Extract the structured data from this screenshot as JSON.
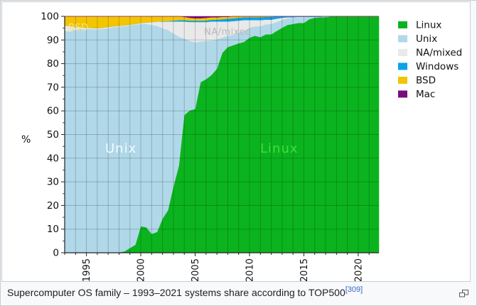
{
  "figure": {
    "caption": {
      "text": "Supercomputer OS family – 1993–2021 systems share according to TOP500",
      "ref": "[309]"
    }
  },
  "chart_data": {
    "type": "area",
    "stacked": true,
    "title": "",
    "xlabel": "",
    "ylabel": "%",
    "xlim": [
      1993,
      2021.9
    ],
    "ylim": [
      0,
      100
    ],
    "grid": true,
    "legend_position": "right",
    "xticks": {
      "major": [
        1995,
        2000,
        2005,
        2010,
        2015,
        2020
      ],
      "minor_step": 1
    },
    "yticks": {
      "major": [
        0,
        10,
        20,
        30,
        40,
        50,
        60,
        70,
        80,
        90,
        100
      ],
      "minor_step": 5
    },
    "x": [
      1993,
      1993.5,
      1994,
      1994.5,
      1995,
      1995.5,
      1996,
      1996.5,
      1997,
      1997.5,
      1998,
      1998.5,
      1999,
      1999.5,
      2000,
      2000.5,
      2001,
      2001.5,
      2002,
      2002.5,
      2003,
      2003.5,
      2004,
      2004.5,
      2005,
      2005.5,
      2006,
      2006.5,
      2007,
      2007.5,
      2008,
      2008.5,
      2009,
      2009.5,
      2010,
      2010.5,
      2011,
      2011.5,
      2012,
      2012.5,
      2013,
      2013.5,
      2014,
      2014.5,
      2015,
      2015.5,
      2016,
      2016.5,
      2017,
      2017.5,
      2018,
      2018.5,
      2019,
      2019.5,
      2020,
      2020.5,
      2021,
      2021.5,
      2021.9
    ],
    "series": [
      {
        "name": "Linux",
        "color": "#0bb41e",
        "values": [
          0,
          0,
          0,
          0,
          0,
          0,
          0,
          0,
          0,
          0,
          0.2,
          0.6,
          2,
          3.4,
          11.2,
          10.8,
          8,
          8.8,
          14.4,
          18,
          28,
          36.8,
          58.2,
          60.2,
          60.8,
          72.2,
          73.4,
          75.2,
          77.8,
          84.6,
          87,
          87.8,
          88.6,
          89.2,
          91,
          91.8,
          91.2,
          92.4,
          92.4,
          93.8,
          95.2,
          96.4,
          96.8,
          97.2,
          97.2,
          98.8,
          99.4,
          99.6,
          99.6,
          100,
          100,
          100,
          100,
          100,
          100,
          100,
          100,
          100,
          100
        ]
      },
      {
        "name": "Unix",
        "color": "#b0d8e8",
        "values": [
          94,
          93.5,
          94.5,
          94.7,
          94.7,
          94.6,
          94.5,
          94.7,
          95,
          95.4,
          95.4,
          95.2,
          94.2,
          93.1,
          85.6,
          86,
          88.4,
          87.2,
          80.6,
          76.2,
          64.8,
          54.6,
          32.4,
          29.4,
          28.2,
          17.2,
          16.2,
          14.6,
          12.4,
          6.4,
          4.8,
          4.4,
          4.4,
          4.6,
          4.2,
          4,
          4.6,
          4.2,
          4.4,
          3.8,
          3.4,
          2.8,
          2.6,
          2.4,
          2.4,
          1,
          0.4,
          0.2,
          0.4,
          0,
          0,
          0,
          0,
          0,
          0,
          0,
          0,
          0,
          0
        ]
      },
      {
        "name": "NA/mixed",
        "color": "#e9e9e9",
        "values": [
          2,
          2.5,
          1,
          0.7,
          0.5,
          0.5,
          0.5,
          0.5,
          0.5,
          0.4,
          0.4,
          0.4,
          0.3,
          0.3,
          0.4,
          0.6,
          1.2,
          1.8,
          2.8,
          3.6,
          5,
          6.4,
          7.2,
          8,
          8.6,
          8.2,
          8,
          8,
          7.6,
          6.8,
          6,
          5.8,
          5.2,
          4.6,
          3.2,
          2.6,
          2.6,
          2,
          1.8,
          1.4,
          0.8,
          0.4,
          0.2,
          0.2,
          0.2,
          0,
          0,
          0,
          0,
          0,
          0,
          0,
          0,
          0,
          0,
          0,
          0,
          0,
          0
        ]
      },
      {
        "name": "Windows",
        "color": "#0aa2e8",
        "values": [
          0,
          0,
          0,
          0,
          0,
          0,
          0,
          0,
          0,
          0,
          0,
          0,
          0,
          0,
          0,
          0,
          0,
          0,
          0.2,
          0.2,
          0.4,
          0.6,
          0.6,
          0.6,
          0.6,
          0.6,
          0.6,
          0.8,
          0.8,
          1,
          1.2,
          1.2,
          1.2,
          1.2,
          1.2,
          1.2,
          1.2,
          1.2,
          1.2,
          1,
          0.6,
          0.4,
          0.4,
          0.2,
          0.2,
          0.2,
          0.2,
          0.2,
          0,
          0,
          0,
          0,
          0,
          0,
          0,
          0,
          0,
          0,
          0
        ]
      },
      {
        "name": "BSD",
        "color": "#f2c500",
        "values": [
          4,
          4,
          4.5,
          4.6,
          4.8,
          4.9,
          5,
          4.8,
          4.5,
          4.2,
          4,
          3.8,
          3.5,
          3.2,
          2.8,
          2.6,
          2.4,
          2.2,
          2,
          2,
          1.8,
          1.6,
          1.4,
          1.2,
          1,
          1,
          1.2,
          1,
          1,
          1,
          0.8,
          0.8,
          0.6,
          0.4,
          0.4,
          0.4,
          0.4,
          0.2,
          0.2,
          0,
          0,
          0,
          0,
          0,
          0,
          0,
          0,
          0,
          0,
          0,
          0,
          0,
          0,
          0,
          0,
          0,
          0,
          0,
          0
        ]
      },
      {
        "name": "Mac",
        "color": "#7a0b7a",
        "values": [
          0,
          0,
          0,
          0,
          0,
          0,
          0,
          0,
          0,
          0,
          0,
          0,
          0,
          0,
          0,
          0,
          0,
          0,
          0,
          0,
          0,
          0,
          0.2,
          0.6,
          0.8,
          0.8,
          0.6,
          0.4,
          0.4,
          0.2,
          0.2,
          0,
          0,
          0,
          0,
          0,
          0,
          0,
          0,
          0,
          0,
          0,
          0,
          0,
          0,
          0,
          0,
          0,
          0,
          0,
          0,
          0,
          0,
          0,
          0,
          0,
          0,
          0,
          0
        ]
      }
    ],
    "area_labels": [
      {
        "text": "BSD",
        "color": "#ffe27a"
      },
      {
        "text": "NA/mixed",
        "color": "#b9b9b9"
      },
      {
        "text": "Unix",
        "color": "#f4fbff"
      },
      {
        "text": "Linux",
        "color": "#3fdd43"
      }
    ]
  }
}
